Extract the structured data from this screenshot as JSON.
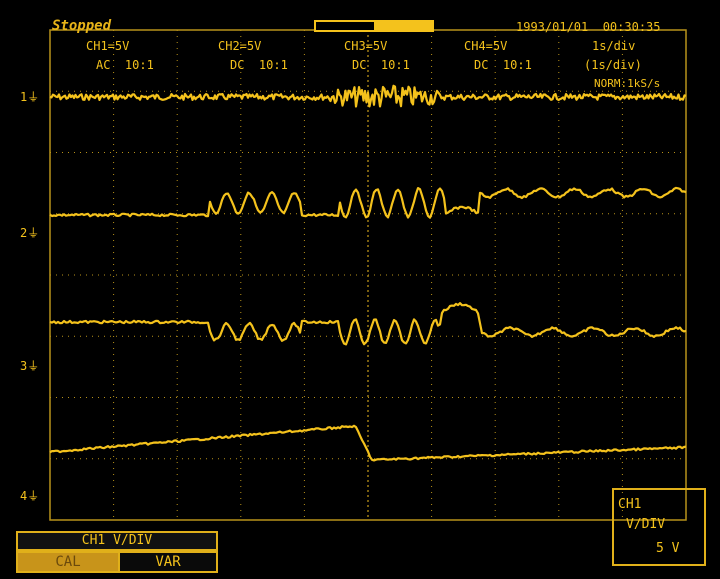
{
  "header": {
    "status": "Stopped",
    "datetime": "1993/01/01  00:30:35",
    "record_position": 0.5
  },
  "channels": [
    {
      "scale": "CH1=5V",
      "coupling": "AC  10:1"
    },
    {
      "scale": "CH2=5V",
      "coupling": "DC  10:1"
    },
    {
      "scale": "CH3=5V",
      "coupling": "DC  10:1"
    },
    {
      "scale": "CH4=5V",
      "coupling": "DC  10:1"
    }
  ],
  "timebase": {
    "main": "1s/div",
    "zoom": "(1s/div)",
    "mode": "NORM:1kS/s"
  },
  "markers": [
    "1",
    "2",
    "3",
    "4"
  ],
  "menu": {
    "title": "CH1  V/DIV",
    "cal_label": "CAL",
    "var_label": "VAR"
  },
  "readout": {
    "channel": "CH1",
    "label": "V/DIV",
    "value": "5 V"
  },
  "colors": {
    "trace": "#f4c21c",
    "grid": "#b8921a",
    "background": "#000000"
  }
}
